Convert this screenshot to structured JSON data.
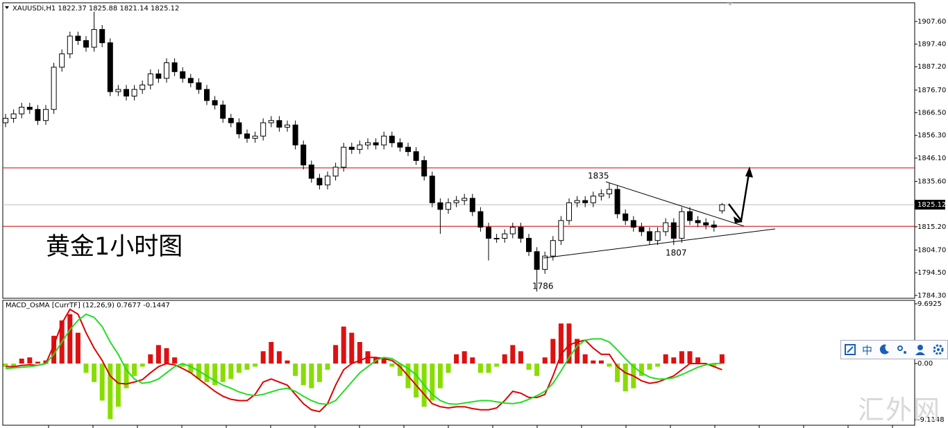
{
  "chart_data": [
    {
      "type": "candlestick",
      "title": "XAUUSDi,H1  1822.37 1825.88 1821.14 1825.12",
      "caption": "黄金1小时图",
      "annotations": [
        "1835",
        "1807",
        "1786"
      ],
      "ylim": [
        1783,
        1916
      ],
      "yticks": [
        {
          "value": 1907.6,
          "label": "1907.60"
        },
        {
          "value": 1897.4,
          "label": "1897.40"
        },
        {
          "value": 1887.2,
          "label": "1887.20"
        },
        {
          "value": 1876.7,
          "label": "1876.70"
        },
        {
          "value": 1866.5,
          "label": "1866.50"
        },
        {
          "value": 1856.3,
          "label": "1856.30"
        },
        {
          "value": 1846.1,
          "label": "1846.10"
        },
        {
          "value": 1835.6,
          "label": "1835.60"
        },
        {
          "value": 1815.2,
          "label": "1815.20"
        },
        {
          "value": 1804.7,
          "label": "1804.70"
        },
        {
          "value": 1794.5,
          "label": "1794.50"
        },
        {
          "value": 1784.3,
          "label": "1784.30"
        }
      ],
      "levels": [
        1841.7,
        1815.4
      ],
      "level_color": "#cc0000",
      "up_color": "#ffffff",
      "down_color": "#000000",
      "open": [
        1862,
        1864,
        1866,
        1869,
        1868,
        1863,
        1868,
        1887,
        1893,
        1901,
        1899,
        1896,
        1904,
        1898,
        1876,
        1877,
        1874,
        1877,
        1879,
        1884,
        1882,
        1889,
        1885,
        1882,
        1880,
        1877,
        1872,
        1870,
        1864,
        1862,
        1857,
        1855,
        1856,
        1862,
        1863,
        1860,
        1861,
        1852,
        1843,
        1837,
        1834,
        1838,
        1842,
        1851,
        1850,
        1852,
        1853,
        1852,
        1856,
        1853,
        1851,
        1849,
        1845,
        1838,
        1826,
        1823,
        1826,
        1827,
        1828,
        1822,
        1815,
        1810,
        1810,
        1812,
        1815,
        1810,
        1804,
        1796,
        1802,
        1809,
        1818,
        1826,
        1827,
        1826,
        1829,
        1830,
        1832,
        1821,
        1818,
        1815,
        1813,
        1809,
        1813,
        1817,
        1810,
        1822,
        1818,
        1817,
        1816,
        1822.37
      ],
      "high": [
        1866,
        1868,
        1871,
        1871,
        1870,
        1870,
        1889,
        1895,
        1903,
        1903,
        1901,
        1912,
        1906,
        1900,
        1879,
        1879,
        1879,
        1881,
        1886,
        1886,
        1891,
        1891,
        1887,
        1884,
        1882,
        1879,
        1874,
        1872,
        1866,
        1864,
        1859,
        1858,
        1864,
        1865,
        1865,
        1863,
        1863,
        1854,
        1845,
        1839,
        1840,
        1844,
        1853,
        1853,
        1854,
        1855,
        1855,
        1858,
        1858,
        1855,
        1853,
        1851,
        1847,
        1840,
        1828,
        1828,
        1829,
        1830,
        1830,
        1824,
        1817,
        1812,
        1814,
        1817,
        1817,
        1812,
        1806,
        1804,
        1811,
        1820,
        1828,
        1829,
        1829,
        1831,
        1832,
        1835,
        1834,
        1823,
        1820,
        1817,
        1815,
        1815,
        1819,
        1819,
        1824,
        1824,
        1820,
        1819,
        1818,
        1825.88
      ],
      "low": [
        1860,
        1862,
        1864,
        1866,
        1861,
        1861,
        1866,
        1885,
        1891,
        1897,
        1894,
        1894,
        1896,
        1874,
        1874,
        1872,
        1872,
        1875,
        1877,
        1880,
        1880,
        1883,
        1880,
        1878,
        1875,
        1870,
        1868,
        1862,
        1860,
        1855,
        1853,
        1853,
        1854,
        1860,
        1858,
        1858,
        1850,
        1841,
        1835,
        1832,
        1832,
        1836,
        1840,
        1848,
        1848,
        1850,
        1850,
        1850,
        1851,
        1849,
        1847,
        1843,
        1836,
        1824,
        1812,
        1821,
        1824,
        1825,
        1820,
        1813,
        1800,
        1808,
        1808,
        1810,
        1808,
        1802,
        1786,
        1794,
        1800,
        1807,
        1816,
        1824,
        1824,
        1824,
        1827,
        1828,
        1819,
        1816,
        1813,
        1811,
        1807,
        1807,
        1811,
        1807,
        1808,
        1816,
        1815,
        1814,
        1813,
        1821.14
      ],
      "close": [
        1864,
        1866,
        1869,
        1868,
        1863,
        1868,
        1887,
        1893,
        1901,
        1899,
        1896,
        1904,
        1898,
        1876,
        1877,
        1874,
        1877,
        1879,
        1884,
        1882,
        1889,
        1885,
        1882,
        1880,
        1877,
        1872,
        1870,
        1864,
        1862,
        1857,
        1855,
        1856,
        1862,
        1863,
        1860,
        1861,
        1852,
        1843,
        1837,
        1834,
        1838,
        1842,
        1851,
        1850,
        1852,
        1853,
        1852,
        1856,
        1853,
        1851,
        1849,
        1845,
        1838,
        1826,
        1823,
        1826,
        1827,
        1828,
        1822,
        1815,
        1810,
        1810,
        1812,
        1815,
        1810,
        1804,
        1796,
        1802,
        1809,
        1818,
        1826,
        1827,
        1826,
        1829,
        1830,
        1832,
        1821,
        1818,
        1815,
        1813,
        1809,
        1813,
        1817,
        1810,
        1822,
        1818,
        1817,
        1816,
        1815,
        1825.12
      ]
    },
    {
      "type": "macd",
      "title": "MACD_OsMA [CurrTF] (12,26,9) 0.7677 -0.1447",
      "ylim": [
        -10,
        10.25
      ],
      "yticks": [
        9.6925,
        {
          "value": 0,
          "label": "0.00"
        },
        -9.1148
      ],
      "positive_color": "#dd1111",
      "negative_color": "#88dd00",
      "histogram": [
        -0.5,
        -0.5,
        0.8,
        1,
        0.3,
        0.5,
        4.5,
        7,
        8,
        5,
        -1.5,
        -3,
        -6,
        -9,
        -7,
        -4,
        -2,
        -0.5,
        1.5,
        3,
        2.5,
        1,
        -0.5,
        -1.5,
        -2.5,
        -3,
        -3.5,
        -3,
        -2.5,
        -1.5,
        -1,
        -0.5,
        2,
        3.5,
        2,
        0.5,
        -2,
        -3.5,
        -4,
        -3,
        -1,
        3,
        6,
        5,
        3.5,
        2,
        1,
        1,
        -0.5,
        -2,
        -4,
        -5.5,
        -7,
        -6,
        -4,
        -1.5,
        1.5,
        2,
        1,
        -1.5,
        -1.5,
        -0.5,
        1.5,
        3,
        2,
        -1,
        -2,
        1,
        4,
        6.5,
        6.5,
        4,
        1.5,
        0.5,
        0.5,
        -0.5,
        -3,
        -4.5,
        -4,
        -2,
        -1,
        -0.5,
        1.5,
        1,
        2,
        2,
        1,
        0,
        -0.5,
        1.5
      ],
      "series": [
        {
          "color": "#dd0000",
          "values": [
            -0.5,
            -0.5,
            -0.3,
            -0.2,
            -0.3,
            0,
            3,
            6.5,
            8.8,
            8,
            5,
            2.5,
            0.5,
            -2,
            -3.2,
            -3.3,
            -3,
            -2.6,
            -1.5,
            -0.5,
            0,
            -0.2,
            -0.8,
            -1.5,
            -2.5,
            -3.5,
            -4.5,
            -5.3,
            -5.8,
            -6,
            -6,
            -5,
            -3,
            -2.5,
            -3,
            -3.5,
            -5,
            -6.5,
            -7.5,
            -7.8,
            -6.5,
            -3.5,
            -1,
            0,
            0.5,
            1,
            1,
            0.8,
            0.5,
            -0.5,
            -2,
            -3.5,
            -5,
            -6.5,
            -7,
            -7.2,
            -7,
            -7,
            -7.3,
            -7.5,
            -7.5,
            -7.2,
            -6,
            -4.5,
            -4.8,
            -5.5,
            -5.5,
            -5,
            -2,
            1.5,
            3,
            3.5,
            3.8,
            2.5,
            1.5,
            1.5,
            -0.5,
            -1.5,
            -2,
            -2.8,
            -3.2,
            -3,
            -2.5,
            -2,
            -1,
            0,
            0,
            0,
            -0.5,
            -1
          ]
        },
        {
          "color": "#22dd22",
          "values": [
            -0.8,
            -0.7,
            -0.6,
            -0.5,
            -0.3,
            0,
            1.5,
            3.5,
            5.5,
            7,
            8,
            7.5,
            6,
            3.5,
            1.5,
            -1,
            -2.5,
            -3.2,
            -3,
            -2.5,
            -1.5,
            -0.5,
            0,
            -0.5,
            -1.2,
            -2,
            -2.8,
            -3.5,
            -4,
            -4.6,
            -5,
            -5.2,
            -5,
            -4.6,
            -4.2,
            -4,
            -4.5,
            -5.3,
            -6,
            -6.5,
            -6.6,
            -6,
            -4.5,
            -3,
            -1.5,
            -0.5,
            0.5,
            1,
            0.8,
            0,
            -0.8,
            -1.8,
            -3.5,
            -5,
            -6,
            -6.5,
            -6.6,
            -6.4,
            -6.2,
            -6,
            -6,
            -6.2,
            -6.4,
            -6.5,
            -6.3,
            -5.8,
            -5.2,
            -4.5,
            -3.2,
            -1.2,
            1,
            2.8,
            3.8,
            4,
            4,
            3.5,
            2.2,
            0.8,
            -0.5,
            -1.5,
            -2.2,
            -2.5,
            -2.5,
            -2.3,
            -1.8,
            -1.2,
            -0.6,
            -0.2,
            0,
            0
          ]
        }
      ]
    }
  ],
  "toolbar": {
    "label": "中"
  },
  "watermark": "汇外网"
}
